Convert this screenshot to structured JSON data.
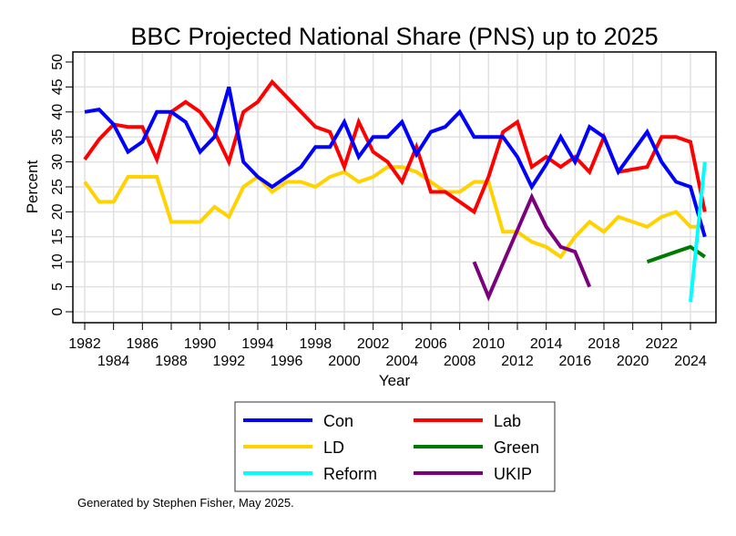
{
  "chart_data": {
    "type": "line",
    "title": "BBC Projected National Share (PNS) up to 2025",
    "xlabel": "Year",
    "ylabel": "Percent",
    "xlim": [
      1981.2,
      2025.7
    ],
    "ylim": [
      0,
      50
    ],
    "x_ticks_upper": [
      "1982",
      "1986",
      "1990",
      "1994",
      "1998",
      "2002",
      "2006",
      "2010",
      "2014",
      "2018",
      "2022"
    ],
    "x_ticks_lower": [
      "1984",
      "1988",
      "1992",
      "1996",
      "2000",
      "2004",
      "2008",
      "2012",
      "2016",
      "2020",
      "2024"
    ],
    "y_ticks": [
      "0",
      "5",
      "10",
      "15",
      "20",
      "25",
      "30",
      "35",
      "40",
      "45",
      "50"
    ],
    "grid": true,
    "legend_position": "bottom",
    "series": [
      {
        "name": "Con",
        "color": "#0000ff",
        "points": [
          [
            1982,
            40
          ],
          [
            1983,
            40.5
          ],
          [
            1984,
            37.5
          ],
          [
            1985,
            32
          ],
          [
            1986,
            34
          ],
          [
            1987,
            40
          ],
          [
            1988,
            40
          ],
          [
            1989,
            38
          ],
          [
            1990,
            32
          ],
          [
            1991,
            35
          ],
          [
            1992,
            45
          ],
          [
            1993,
            30
          ],
          [
            1994,
            27
          ],
          [
            1995,
            25
          ],
          [
            1996,
            27
          ],
          [
            1997,
            29
          ],
          [
            1998,
            33
          ],
          [
            1999,
            33
          ],
          [
            2000,
            38
          ],
          [
            2001,
            31
          ],
          [
            2002,
            35
          ],
          [
            2003,
            35
          ],
          [
            2004,
            38
          ],
          [
            2005,
            31.5
          ],
          [
            2006,
            36
          ],
          [
            2007,
            37
          ],
          [
            2008,
            40
          ],
          [
            2009,
            35
          ],
          [
            2010,
            35
          ],
          [
            2011,
            35
          ],
          [
            2012,
            31
          ],
          [
            2013,
            25
          ],
          [
            2014,
            29.5
          ],
          [
            2015,
            35
          ],
          [
            2016,
            30
          ],
          [
            2017,
            37
          ],
          [
            2018,
            35
          ],
          [
            2019,
            28
          ],
          [
            2021,
            36
          ],
          [
            2022,
            30
          ],
          [
            2023,
            26
          ],
          [
            2024,
            25
          ],
          [
            2025,
            15
          ]
        ]
      },
      {
        "name": "Lab",
        "color": "#ff0000",
        "points": [
          [
            1982,
            30.5
          ],
          [
            1983,
            34.5
          ],
          [
            1984,
            37.5
          ],
          [
            1985,
            37
          ],
          [
            1986,
            37
          ],
          [
            1987,
            30.5
          ],
          [
            1988,
            40
          ],
          [
            1989,
            42
          ],
          [
            1990,
            40
          ],
          [
            1991,
            36
          ],
          [
            1992,
            30
          ],
          [
            1993,
            40
          ],
          [
            1994,
            42
          ],
          [
            1995,
            46
          ],
          [
            1996,
            43
          ],
          [
            1997,
            40
          ],
          [
            1998,
            37
          ],
          [
            1999,
            36
          ],
          [
            2000,
            29
          ],
          [
            2001,
            38
          ],
          [
            2002,
            32
          ],
          [
            2003,
            30
          ],
          [
            2004,
            26
          ],
          [
            2005,
            33
          ],
          [
            2006,
            24
          ],
          [
            2007,
            24
          ],
          [
            2008,
            22
          ],
          [
            2009,
            20
          ],
          [
            2010,
            27
          ],
          [
            2011,
            36
          ],
          [
            2012,
            38
          ],
          [
            2013,
            29
          ],
          [
            2014,
            31
          ],
          [
            2015,
            29
          ],
          [
            2016,
            31
          ],
          [
            2017,
            28
          ],
          [
            2018,
            35
          ],
          [
            2019,
            28
          ],
          [
            2021,
            29
          ],
          [
            2022,
            35
          ],
          [
            2023,
            35
          ],
          [
            2024,
            34
          ],
          [
            2025,
            20
          ]
        ]
      },
      {
        "name": "LD",
        "color": "#ffd200",
        "points": [
          [
            1982,
            26
          ],
          [
            1983,
            22
          ],
          [
            1984,
            22
          ],
          [
            1985,
            27
          ],
          [
            1986,
            27
          ],
          [
            1987,
            27
          ],
          [
            1988,
            18
          ],
          [
            1989,
            18
          ],
          [
            1990,
            18
          ],
          [
            1991,
            21
          ],
          [
            1992,
            19
          ],
          [
            1993,
            25
          ],
          [
            1994,
            27
          ],
          [
            1995,
            24
          ],
          [
            1996,
            26
          ],
          [
            1997,
            26
          ],
          [
            1998,
            25
          ],
          [
            1999,
            27
          ],
          [
            2000,
            28
          ],
          [
            2001,
            26
          ],
          [
            2002,
            27
          ],
          [
            2003,
            29
          ],
          [
            2004,
            29
          ],
          [
            2005,
            28
          ],
          [
            2006,
            26
          ],
          [
            2007,
            24
          ],
          [
            2008,
            24
          ],
          [
            2009,
            26
          ],
          [
            2010,
            26
          ],
          [
            2011,
            16
          ],
          [
            2012,
            16
          ],
          [
            2013,
            14
          ],
          [
            2014,
            13
          ],
          [
            2015,
            11
          ],
          [
            2016,
            15
          ],
          [
            2017,
            18
          ],
          [
            2018,
            16
          ],
          [
            2019,
            19
          ],
          [
            2021,
            17
          ],
          [
            2022,
            19
          ],
          [
            2023,
            20
          ],
          [
            2024,
            17
          ],
          [
            2025,
            17
          ]
        ]
      },
      {
        "name": "Green",
        "color": "#007a00",
        "points": [
          [
            2021,
            10
          ],
          [
            2022,
            11
          ],
          [
            2023,
            12
          ],
          [
            2024,
            13
          ],
          [
            2025,
            11
          ]
        ]
      },
      {
        "name": "Reform",
        "color": "#00ffff",
        "points": [
          [
            2024,
            2
          ],
          [
            2025,
            30
          ]
        ]
      },
      {
        "name": "UKIP",
        "color": "#7b007b",
        "points": [
          [
            2009,
            10
          ],
          [
            2010,
            3
          ],
          [
            2013,
            23
          ],
          [
            2014,
            17
          ],
          [
            2015,
            13
          ],
          [
            2016,
            12
          ],
          [
            2017,
            5
          ]
        ]
      }
    ],
    "legend_order": [
      "Con",
      "Lab",
      "LD",
      "Green",
      "Reform",
      "UKIP"
    ],
    "footer": "Generated by Stephen Fisher, May 2025."
  }
}
